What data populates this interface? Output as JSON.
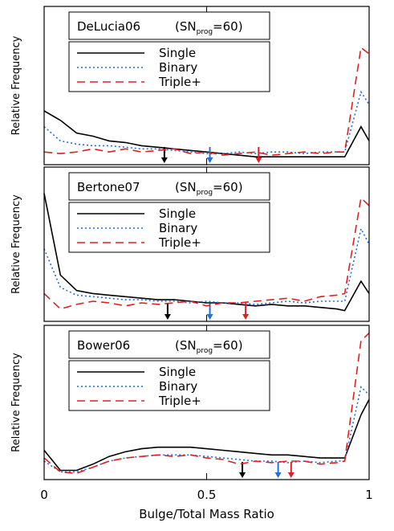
{
  "chart_data": [
    {
      "type": "line",
      "title": "DeLucia06",
      "note_parts": [
        "(SN",
        "prog",
        "=60)"
      ],
      "ylabel": "Relative Frequency",
      "xlim": [
        0,
        1
      ],
      "xticks": [
        0,
        0.5,
        1
      ],
      "xtick_labels": false,
      "ylim": [
        0,
        1
      ],
      "x": [
        0,
        0.05,
        0.1,
        0.15,
        0.2,
        0.25,
        0.3,
        0.35,
        0.4,
        0.45,
        0.5,
        0.55,
        0.6,
        0.65,
        0.7,
        0.75,
        0.8,
        0.85,
        0.9,
        0.925,
        0.975,
        1
      ],
      "series": [
        {
          "name": "Single",
          "color": "#000000",
          "dash": "solid",
          "median": 0.37,
          "values": [
            0.34,
            0.28,
            0.2,
            0.18,
            0.15,
            0.14,
            0.12,
            0.11,
            0.1,
            0.09,
            0.08,
            0.07,
            0.06,
            0.05,
            0.05,
            0.05,
            0.05,
            0.05,
            0.05,
            0.05,
            0.24,
            0.15
          ]
        },
        {
          "name": "Binary",
          "color": "#1e6fe0",
          "dash": "dotted",
          "median": 0.51,
          "values": [
            0.24,
            0.15,
            0.13,
            0.12,
            0.12,
            0.11,
            0.1,
            0.1,
            0.09,
            0.08,
            0.07,
            0.07,
            0.08,
            0.07,
            0.08,
            0.08,
            0.07,
            0.08,
            0.08,
            0.08,
            0.46,
            0.38
          ]
        },
        {
          "name": "Triple+",
          "color": "#e02020",
          "dash": "dashed",
          "median": 0.66,
          "values": [
            0.08,
            0.07,
            0.08,
            0.1,
            0.08,
            0.1,
            0.08,
            0.09,
            0.1,
            0.07,
            0.08,
            0.06,
            0.07,
            0.08,
            0.06,
            0.07,
            0.08,
            0.07,
            0.08,
            0.08,
            0.74,
            0.7
          ]
        }
      ]
    },
    {
      "type": "line",
      "title": "Bertone07",
      "note_parts": [
        "(SN",
        "prog",
        "=60)"
      ],
      "ylabel": "Relative Frequency",
      "xlim": [
        0,
        1
      ],
      "xticks": [
        0,
        0.5,
        1
      ],
      "xtick_labels": false,
      "ylim": [
        0,
        1
      ],
      "x": [
        0,
        0.05,
        0.1,
        0.15,
        0.2,
        0.25,
        0.3,
        0.35,
        0.4,
        0.45,
        0.5,
        0.55,
        0.6,
        0.65,
        0.7,
        0.75,
        0.8,
        0.85,
        0.9,
        0.925,
        0.975,
        1
      ],
      "series": [
        {
          "name": "Single",
          "color": "#000000",
          "dash": "solid",
          "median": 0.38,
          "values": [
            0.83,
            0.3,
            0.2,
            0.18,
            0.17,
            0.16,
            0.15,
            0.14,
            0.14,
            0.13,
            0.12,
            0.12,
            0.11,
            0.1,
            0.11,
            0.1,
            0.1,
            0.09,
            0.08,
            0.07,
            0.26,
            0.18
          ]
        },
        {
          "name": "Binary",
          "color": "#1e6fe0",
          "dash": "dotted",
          "median": 0.51,
          "values": [
            0.47,
            0.22,
            0.17,
            0.16,
            0.15,
            0.14,
            0.14,
            0.13,
            0.13,
            0.12,
            0.13,
            0.12,
            0.12,
            0.11,
            0.12,
            0.13,
            0.12,
            0.13,
            0.13,
            0.13,
            0.6,
            0.5
          ]
        },
        {
          "name": "Triple+",
          "color": "#e02020",
          "dash": "dashed",
          "median": 0.62,
          "values": [
            0.18,
            0.08,
            0.11,
            0.13,
            0.12,
            0.1,
            0.12,
            0.11,
            0.12,
            0.13,
            0.1,
            0.12,
            0.12,
            0.13,
            0.14,
            0.15,
            0.13,
            0.16,
            0.17,
            0.18,
            0.8,
            0.75
          ]
        }
      ]
    },
    {
      "type": "line",
      "title": "Bower06",
      "note_parts": [
        "(SN",
        "prog",
        "=60)"
      ],
      "ylabel": "Relative Frequency",
      "xlabel": "Bulge/Total Mass Ratio",
      "xlim": [
        0,
        1
      ],
      "xticks": [
        0,
        0.5,
        1
      ],
      "xtick_labels": true,
      "ylim": [
        0,
        1
      ],
      "x": [
        0,
        0.05,
        0.1,
        0.15,
        0.2,
        0.25,
        0.3,
        0.35,
        0.4,
        0.45,
        0.5,
        0.55,
        0.6,
        0.65,
        0.7,
        0.75,
        0.8,
        0.85,
        0.9,
        0.925,
        0.975,
        1
      ],
      "series": [
        {
          "name": "Single",
          "color": "#000000",
          "dash": "solid",
          "median": 0.61,
          "values": [
            0.19,
            0.06,
            0.06,
            0.1,
            0.15,
            0.18,
            0.2,
            0.21,
            0.21,
            0.21,
            0.2,
            0.19,
            0.18,
            0.17,
            0.16,
            0.16,
            0.15,
            0.14,
            0.14,
            0.14,
            0.42,
            0.52
          ]
        },
        {
          "name": "Binary",
          "color": "#1e6fe0",
          "dash": "dotted",
          "median": 0.72,
          "values": [
            0.12,
            0.05,
            0.05,
            0.08,
            0.12,
            0.14,
            0.15,
            0.16,
            0.16,
            0.16,
            0.15,
            0.14,
            0.13,
            0.12,
            0.12,
            0.11,
            0.12,
            0.11,
            0.12,
            0.12,
            0.6,
            0.55
          ]
        },
        {
          "name": "Triple+",
          "color": "#e02020",
          "dash": "dashed",
          "median": 0.76,
          "values": [
            0.14,
            0.05,
            0.04,
            0.08,
            0.12,
            0.14,
            0.15,
            0.16,
            0.15,
            0.16,
            0.14,
            0.13,
            0.1,
            0.12,
            0.11,
            0.12,
            0.12,
            0.1,
            0.11,
            0.12,
            0.9,
            0.95
          ]
        }
      ]
    }
  ]
}
